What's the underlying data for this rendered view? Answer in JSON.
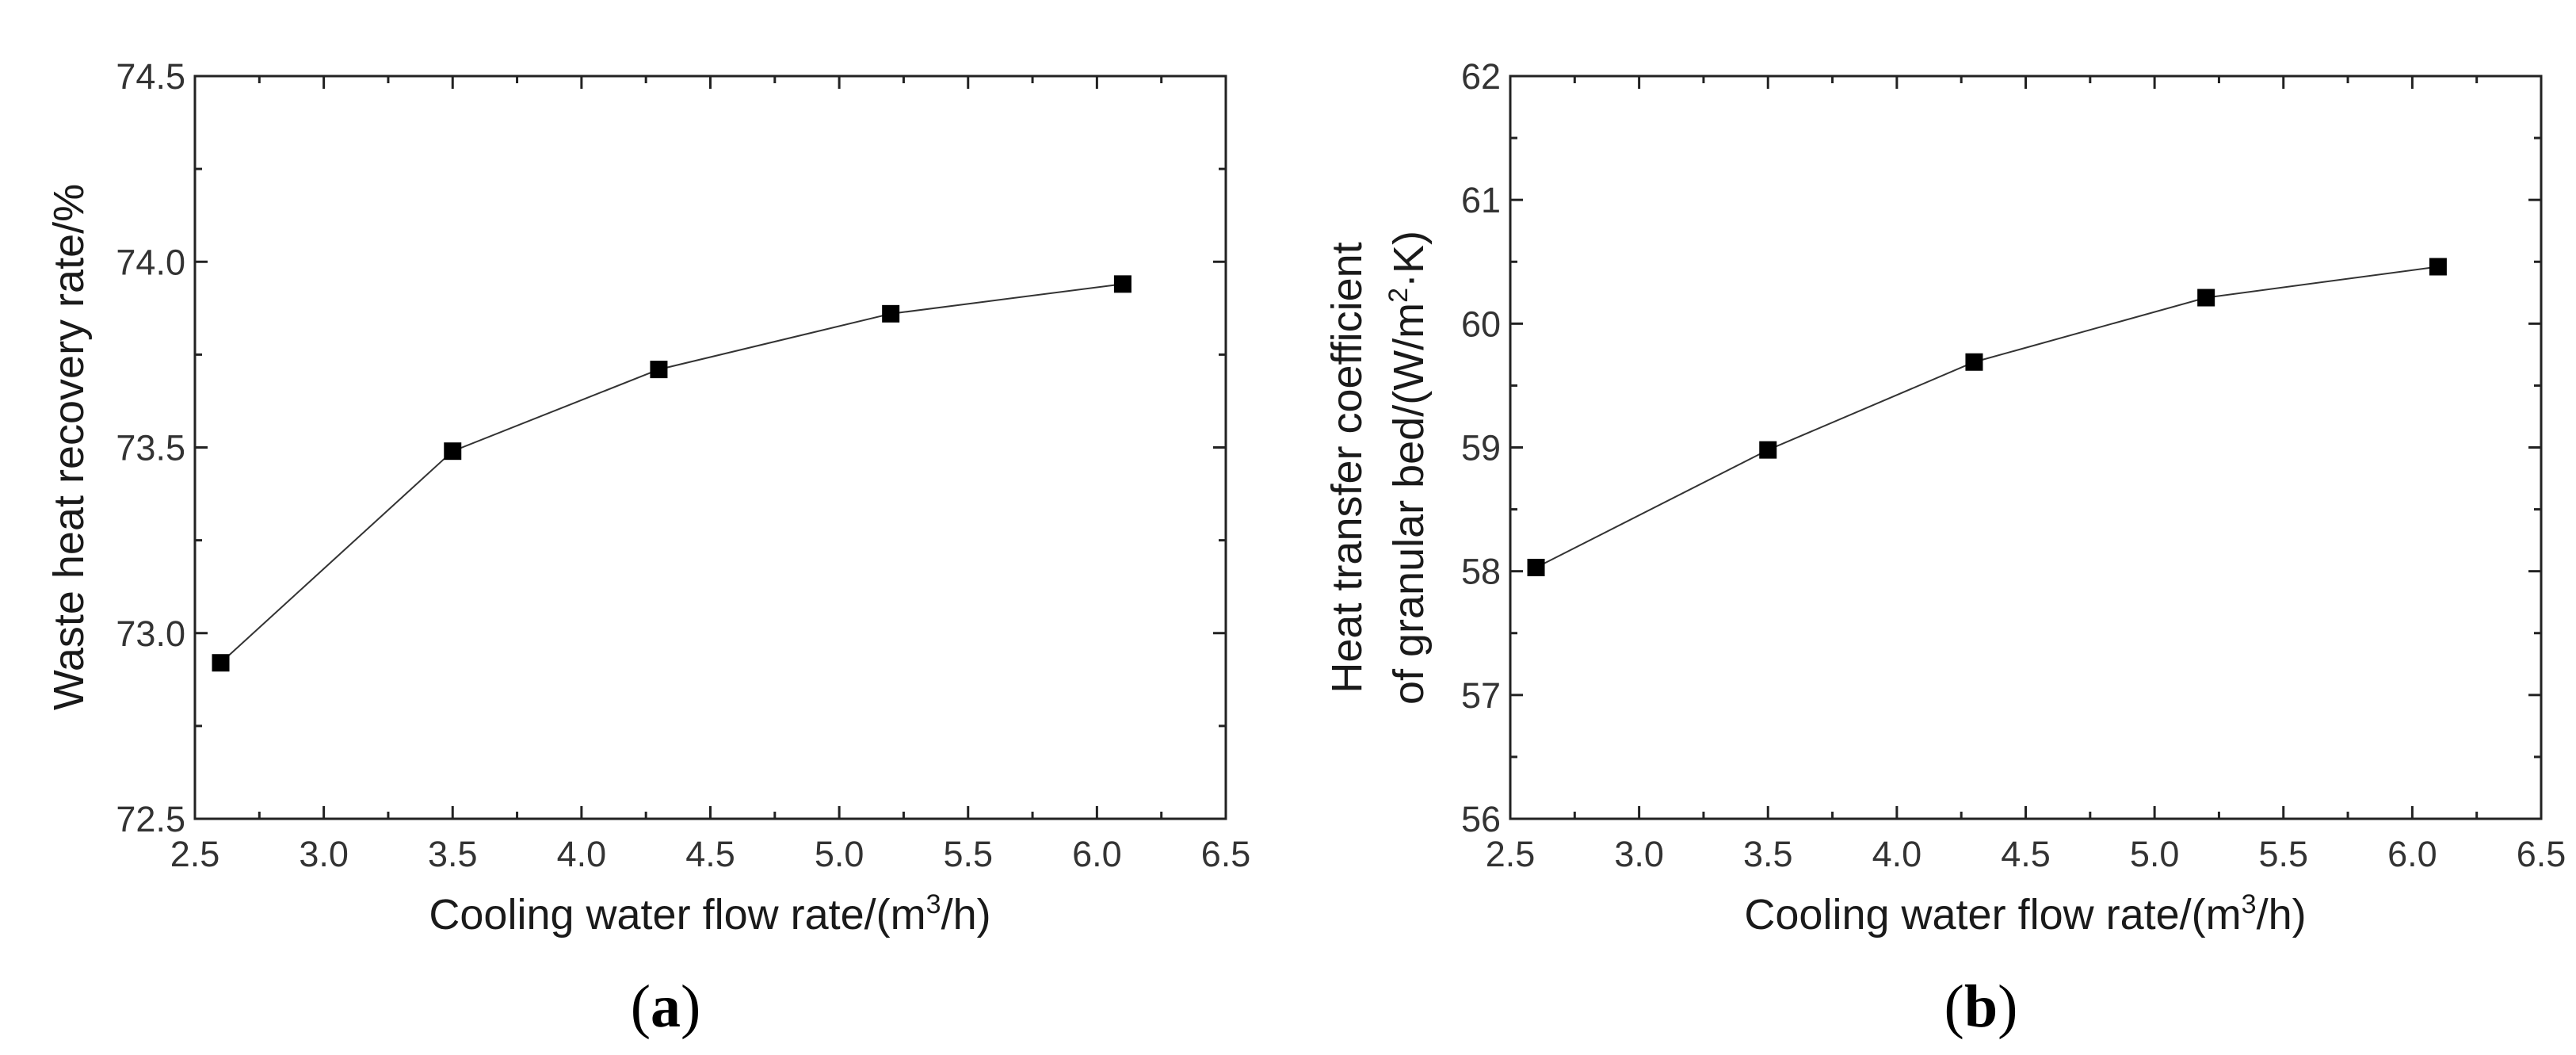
{
  "chart_data": [
    {
      "type": "line",
      "panel_label": "a",
      "title": "",
      "xlabel": {
        "prefix": "Cooling water flow rate/(m",
        "sup": "3",
        "suffix": "/h)"
      },
      "ylabel": "Waste heat recovery rate/%",
      "xlim": [
        2.5,
        6.5
      ],
      "ylim": [
        72.5,
        74.5
      ],
      "x_ticks": [
        "2.5",
        "3.0",
        "3.5",
        "4.0",
        "4.5",
        "5.0",
        "5.5",
        "6.0",
        "6.5"
      ],
      "y_ticks": [
        "72.5",
        "73.0",
        "73.5",
        "74.0",
        "74.5"
      ],
      "marker": "square",
      "series": [
        {
          "name": "",
          "x": [
            2.6,
            3.5,
            4.3,
            5.2,
            6.1
          ],
          "y": [
            72.92,
            73.49,
            73.71,
            73.86,
            73.94
          ]
        }
      ]
    },
    {
      "type": "line",
      "panel_label": "b",
      "title": "",
      "xlabel": {
        "prefix": "Cooling water flow rate/(m",
        "sup": "3",
        "suffix": "/h)"
      },
      "ylabel": "Heat transfer coefficient",
      "ylabel2": {
        "prefix": "of granular bed/(W/m",
        "sup": "2",
        "suffix": "·K)"
      },
      "xlim": [
        2.5,
        6.5
      ],
      "ylim": [
        56,
        62
      ],
      "x_ticks": [
        "2.5",
        "3.0",
        "3.5",
        "4.0",
        "4.5",
        "5.0",
        "5.5",
        "6.0",
        "6.5"
      ],
      "y_ticks": [
        "56",
        "57",
        "58",
        "59",
        "60",
        "61",
        "62"
      ],
      "marker": "square",
      "series": [
        {
          "name": "",
          "x": [
            2.6,
            3.5,
            4.3,
            5.2,
            6.1
          ],
          "y": [
            58.03,
            58.98,
            59.69,
            60.21,
            60.46
          ]
        }
      ]
    }
  ]
}
